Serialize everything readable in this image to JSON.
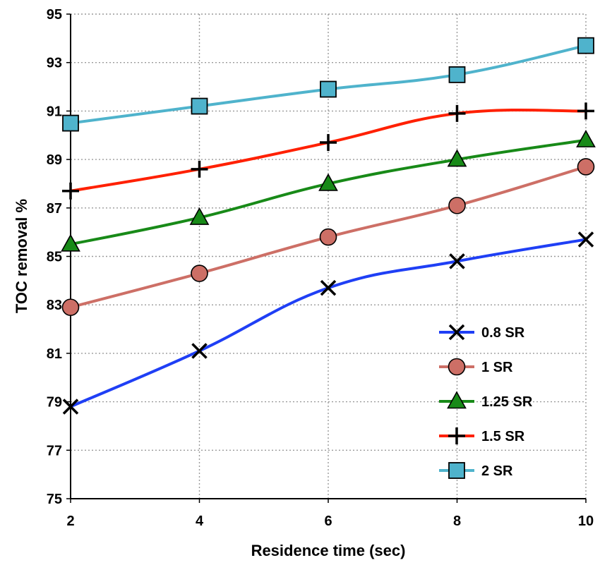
{
  "chart_data": {
    "type": "line",
    "title": "",
    "xlabel": "Residence time (sec)",
    "ylabel": "TOC removal %",
    "x": [
      2,
      4,
      6,
      8,
      10
    ],
    "xlim": [
      2,
      10
    ],
    "ylim": [
      75,
      95
    ],
    "xticks": [
      "2",
      "4",
      "6",
      "8",
      "10"
    ],
    "yticks": [
      "75",
      "77",
      "79",
      "81",
      "83",
      "85",
      "87",
      "89",
      "91",
      "93",
      "95"
    ],
    "grid": true,
    "legend_position": "bottom-right",
    "series": [
      {
        "name": "0.8 SR",
        "color": "#1f3ff5",
        "marker": "x",
        "values": [
          78.8,
          81.1,
          83.7,
          84.8,
          85.7
        ]
      },
      {
        "name": "1 SR",
        "color": "#cd6f66",
        "marker": "circle",
        "values": [
          82.9,
          84.3,
          85.8,
          87.1,
          88.7
        ]
      },
      {
        "name": "1.25 SR",
        "color": "#188a18",
        "marker": "triangle",
        "values": [
          85.5,
          86.6,
          88.0,
          89.0,
          89.8
        ]
      },
      {
        "name": "1.5 SR",
        "color": "#ff2000",
        "marker": "plus",
        "values": [
          87.7,
          88.6,
          89.7,
          90.9,
          91.0
        ]
      },
      {
        "name": "2 SR",
        "color": "#4fb3cc",
        "marker": "square",
        "values": [
          90.5,
          91.2,
          91.9,
          92.5,
          93.7
        ]
      }
    ]
  }
}
